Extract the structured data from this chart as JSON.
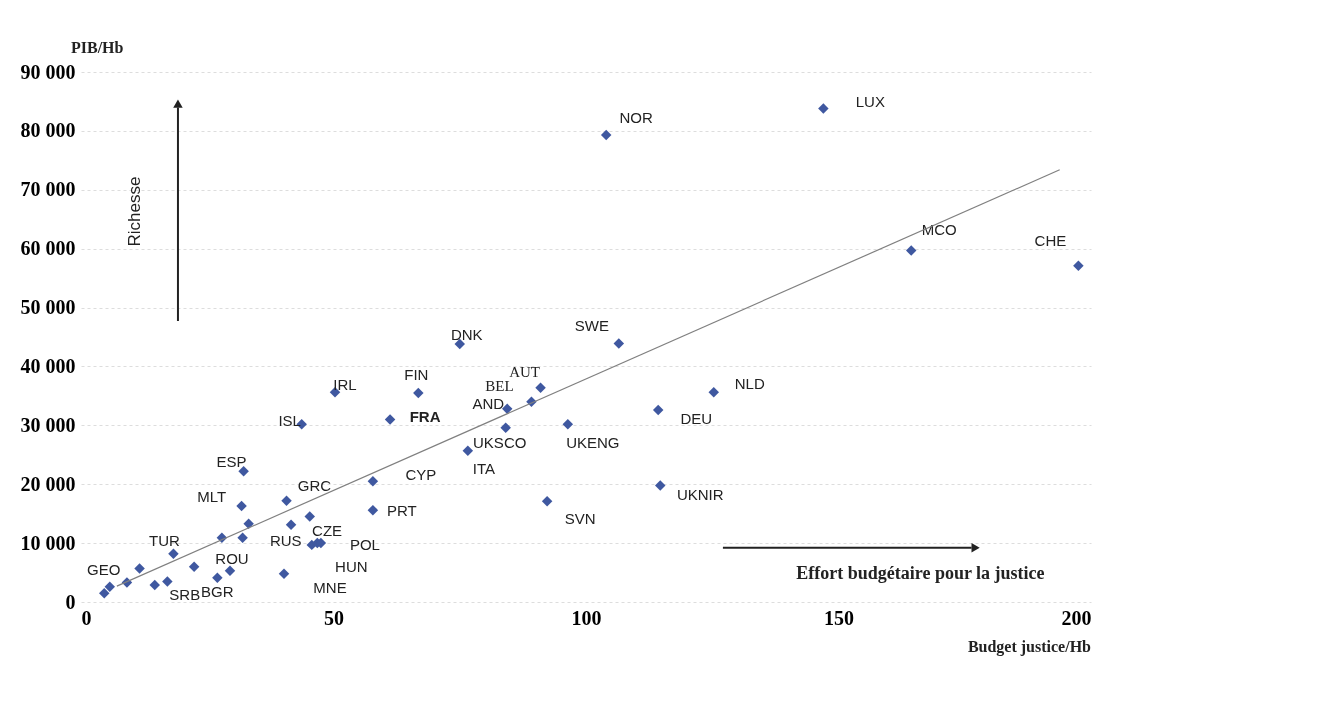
{
  "chart_data": {
    "type": "scatter",
    "xlabel": "Budget justice/Hb",
    "ylabel": "PIB/Hb",
    "xlim": [
      0,
      200
    ],
    "xticks": [
      0,
      50,
      100,
      150,
      200
    ],
    "ylim": [
      0,
      90000
    ],
    "yticks": [
      {
        "value": 0,
        "label": "0"
      },
      {
        "value": 10000,
        "label": "10 000"
      },
      {
        "value": 20000,
        "label": "20 000"
      },
      {
        "value": 30000,
        "label": "30 000"
      },
      {
        "value": 40000,
        "label": "40 000"
      },
      {
        "value": 50000,
        "label": "50 000"
      },
      {
        "value": 60000,
        "label": "60 000"
      },
      {
        "value": 70000,
        "label": "70 000"
      },
      {
        "value": 80000,
        "label": "80 000"
      },
      {
        "value": 90000,
        "label": "90 000"
      }
    ],
    "grid": "y",
    "annotations": [
      "Richesse",
      "Effort budgétaire pour la justice"
    ],
    "series": [
      {
        "marker": "diamond",
        "color": "#3f58a0",
        "x": [
          4.6,
          5.7,
          9.1,
          11.6,
          14.6,
          17.1,
          18.3,
          22.4,
          27.0,
          29.5,
          27.9,
          32.0,
          33.2,
          31.8,
          32.2,
          40.7,
          41.6,
          45.3,
          45.7,
          46.8,
          47.5,
          40.2,
          57.8,
          57.8,
          43.7,
          50.3,
          66.8,
          61.2,
          75.0,
          84.4,
          89.2,
          91.0,
          84.1,
          76.6,
          96.4,
          92.3,
          106.5,
          104.0,
          147.0,
          164.4,
          197.5,
          114.3,
          125.3,
          114.7
        ],
        "values": [
          1500,
          2600,
          3300,
          5700,
          2900,
          3500,
          8200,
          6000,
          4100,
          5300,
          10900,
          10900,
          13300,
          16300,
          22200,
          17200,
          13100,
          14500,
          9700,
          10000,
          10000,
          4800,
          20500,
          15600,
          30200,
          35600,
          35500,
          31000,
          43800,
          32800,
          34000,
          36400,
          29600,
          25700,
          30200,
          17100,
          43900,
          79300,
          83800,
          59700,
          57100,
          32600,
          35600,
          19800
        ],
        "value_labels": [
          null,
          "GEO",
          null,
          null,
          "SRB",
          null,
          "TUR",
          null,
          "BGR",
          "ROU",
          null,
          null,
          null,
          "MLT",
          "ESP",
          "GRC",
          "CZE",
          null,
          "RUS",
          "HUN",
          "POL",
          "MNE",
          "CYP",
          "PRT",
          "ISL",
          "IRL",
          "FIN",
          "FRA",
          "DNK",
          "AND",
          "BEL",
          "AUT",
          "UKSCO",
          "ITA",
          "UKENG",
          "SVN",
          "SWE",
          "NOR",
          "LUX",
          "MCO",
          "CHE",
          "DEU",
          "NLD",
          "UKNIR"
        ]
      },
      {
        "type": "line",
        "color": "#808080",
        "x": [
          7.1,
          193.8
        ],
        "values": [
          2700,
          73400
        ]
      }
    ]
  }
}
